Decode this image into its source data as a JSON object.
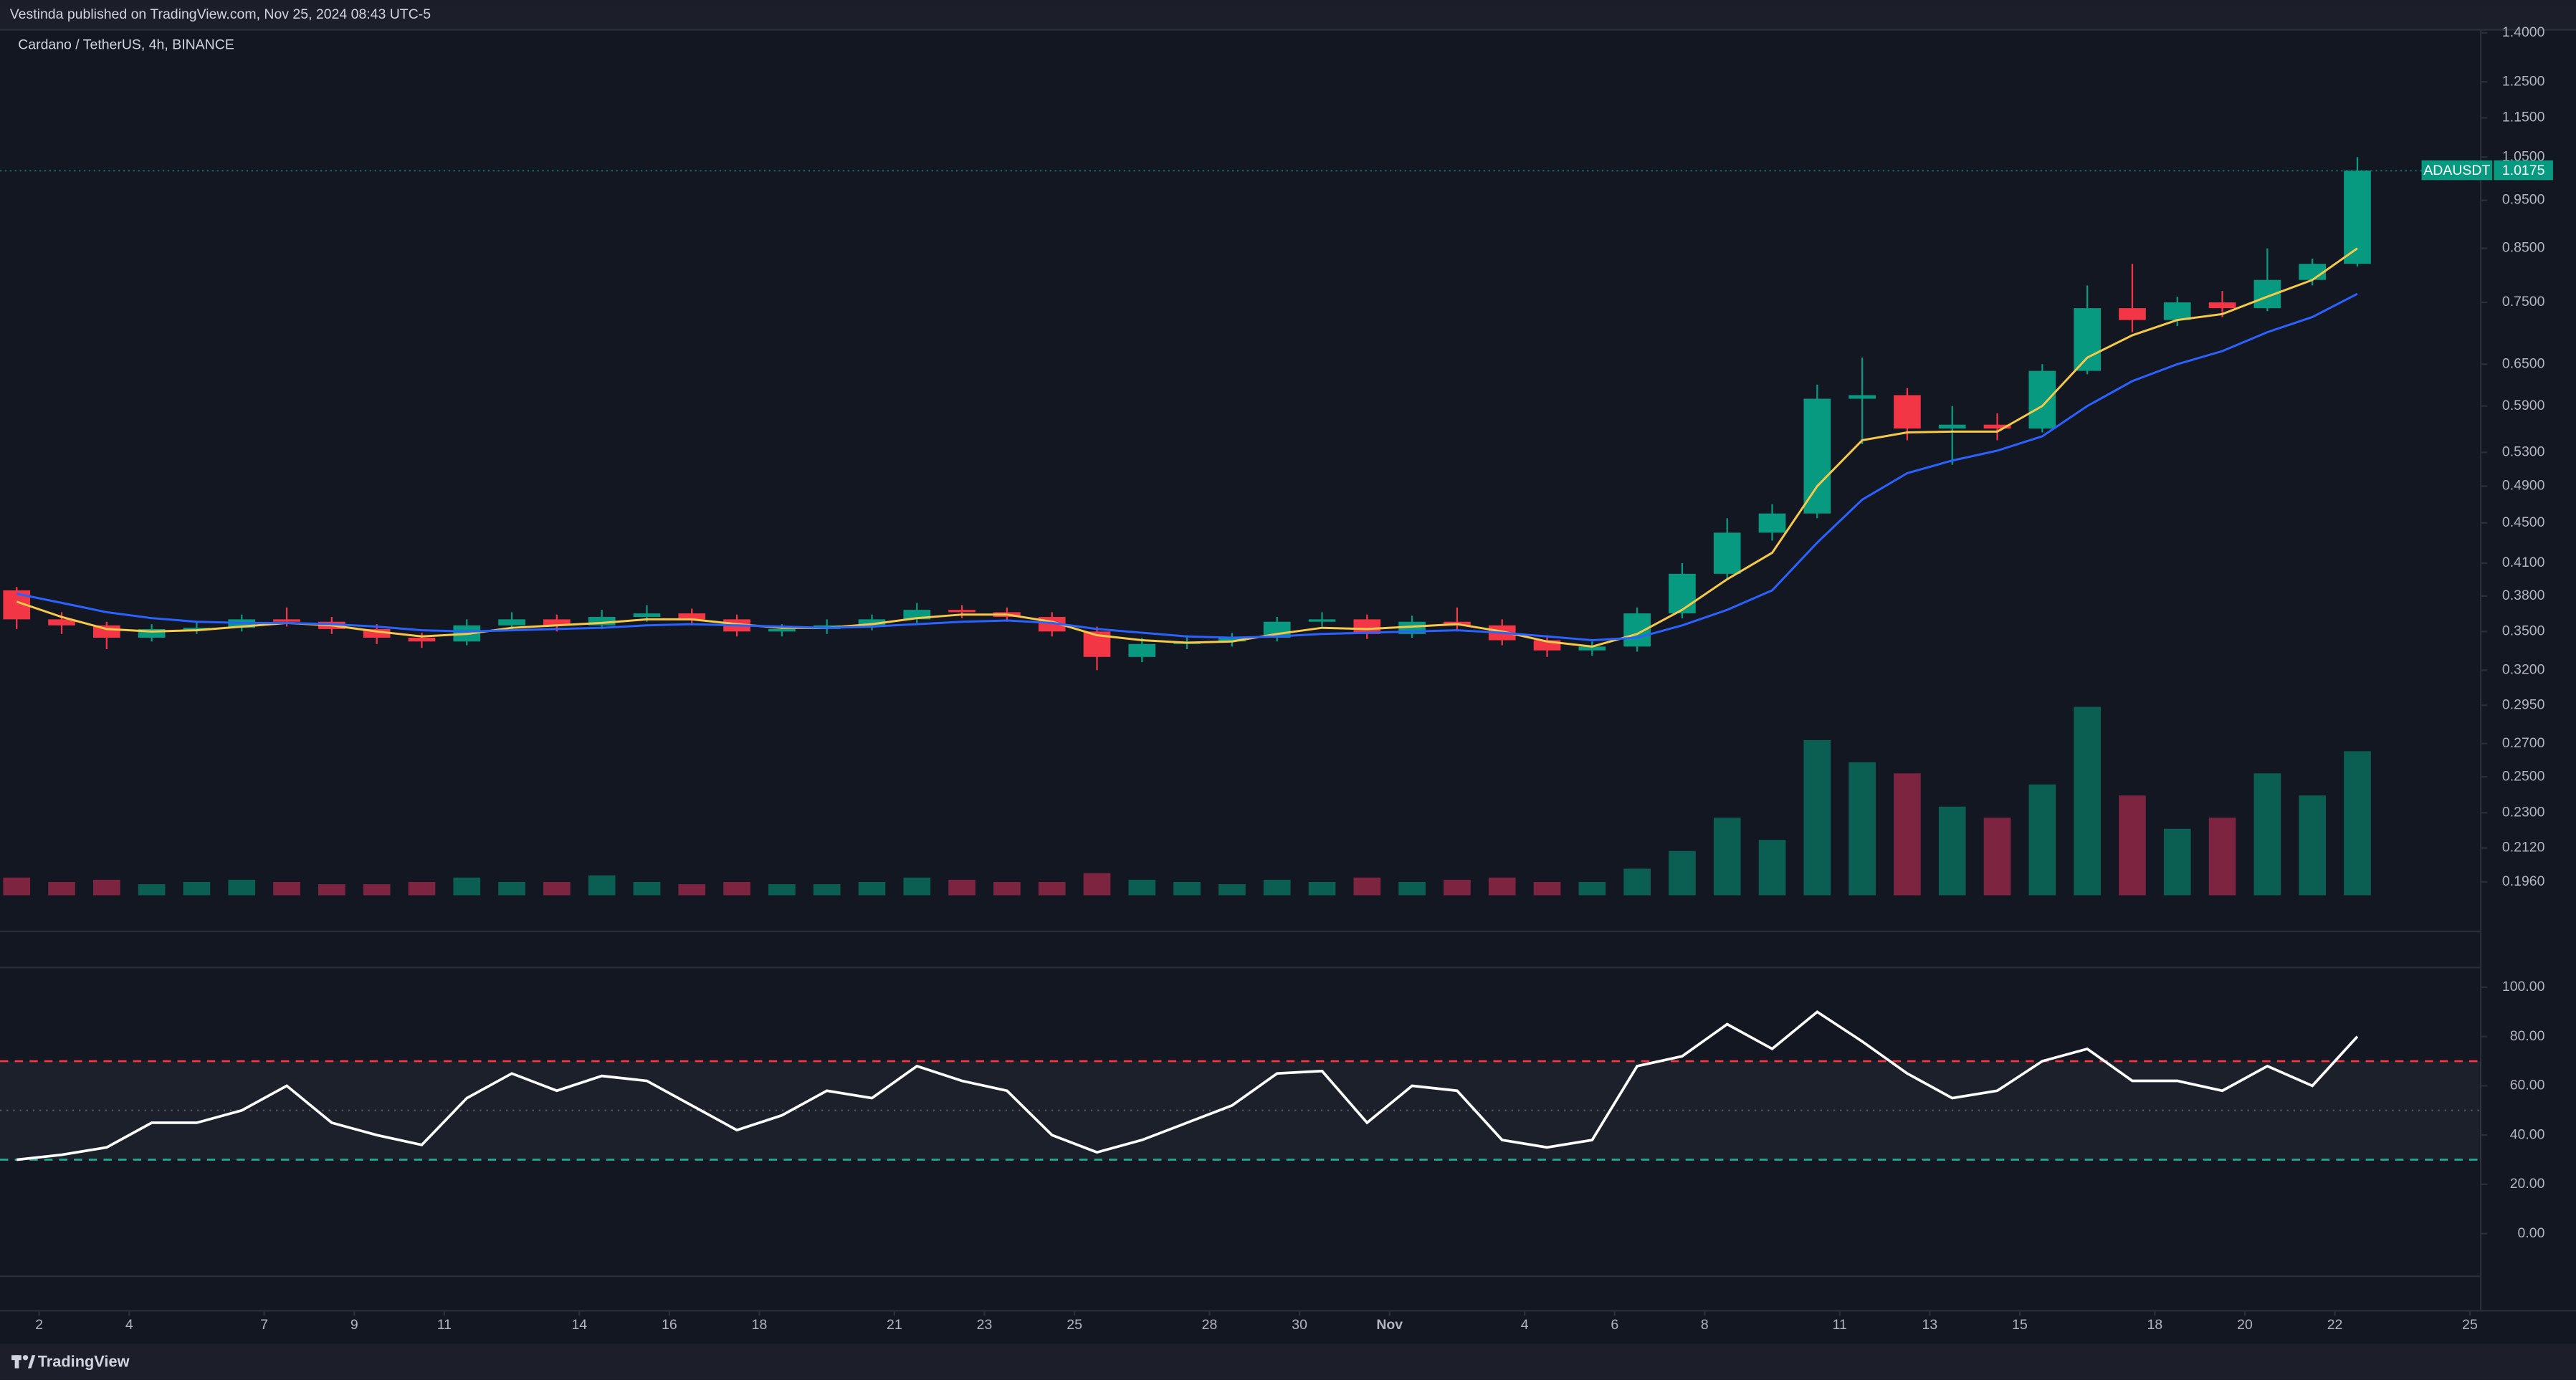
{
  "header": {
    "publisher": "Vestinda published on TradingView.com, Nov 25, 2024 08:43 UTC-5"
  },
  "footer": {
    "brand": "TradingView"
  },
  "chart_data": [
    {
      "type": "candlestick",
      "title": "Cardano / TetherUS, 4h, BINANCE",
      "log": true,
      "x": [
        0.5,
        1.5,
        2.5,
        3.5,
        4.5,
        5.5,
        6.5,
        7.5,
        8.5,
        9.5,
        10.5,
        11.5,
        12.5,
        13.5,
        14.5,
        15.5,
        16.5,
        17.5,
        18.5,
        19.5,
        20.5,
        21.5,
        22.5,
        23.5,
        24.5,
        25.5,
        26.5,
        27.5,
        28.5,
        29.5,
        30.5,
        31.5,
        32.5,
        33.5,
        34.5,
        35.5,
        36.5,
        37.5,
        38.5,
        39.5,
        40.5,
        41.5,
        42.5,
        43.5,
        44.5,
        45.5,
        46.5,
        47.5,
        48.5,
        49.5,
        50.5,
        51.5,
        52.5
      ],
      "open": [
        0.385,
        0.36,
        0.355,
        0.345,
        0.352,
        0.353,
        0.36,
        0.358,
        0.352,
        0.345,
        0.342,
        0.355,
        0.36,
        0.355,
        0.362,
        0.365,
        0.36,
        0.35,
        0.352,
        0.355,
        0.36,
        0.368,
        0.366,
        0.362,
        0.35,
        0.33,
        0.34,
        0.342,
        0.345,
        0.358,
        0.36,
        0.348,
        0.358,
        0.355,
        0.343,
        0.335,
        0.338,
        0.365,
        0.4,
        0.44,
        0.46,
        0.6,
        0.605,
        0.56,
        0.565,
        0.56,
        0.64,
        0.74,
        0.72,
        0.75,
        0.74,
        0.79,
        0.82
      ],
      "high": [
        0.388,
        0.366,
        0.358,
        0.356,
        0.358,
        0.364,
        0.37,
        0.362,
        0.356,
        0.349,
        0.36,
        0.366,
        0.364,
        0.368,
        0.372,
        0.369,
        0.364,
        0.356,
        0.36,
        0.364,
        0.374,
        0.372,
        0.37,
        0.366,
        0.354,
        0.345,
        0.347,
        0.349,
        0.362,
        0.366,
        0.364,
        0.363,
        0.37,
        0.36,
        0.347,
        0.342,
        0.37,
        0.41,
        0.455,
        0.47,
        0.62,
        0.66,
        0.615,
        0.59,
        0.58,
        0.65,
        0.78,
        0.82,
        0.76,
        0.77,
        0.85,
        0.83,
        1.05
      ],
      "low": [
        0.352,
        0.348,
        0.336,
        0.342,
        0.348,
        0.35,
        0.354,
        0.348,
        0.34,
        0.337,
        0.339,
        0.351,
        0.35,
        0.352,
        0.358,
        0.355,
        0.346,
        0.346,
        0.348,
        0.351,
        0.356,
        0.361,
        0.358,
        0.346,
        0.32,
        0.326,
        0.336,
        0.338,
        0.342,
        0.354,
        0.344,
        0.345,
        0.35,
        0.339,
        0.33,
        0.331,
        0.334,
        0.361,
        0.395,
        0.432,
        0.455,
        0.54,
        0.545,
        0.515,
        0.545,
        0.555,
        0.635,
        0.7,
        0.71,
        0.725,
        0.735,
        0.78,
        0.815
      ],
      "close": [
        0.36,
        0.355,
        0.345,
        0.352,
        0.353,
        0.36,
        0.358,
        0.352,
        0.345,
        0.342,
        0.355,
        0.36,
        0.355,
        0.362,
        0.365,
        0.36,
        0.35,
        0.352,
        0.355,
        0.36,
        0.368,
        0.366,
        0.362,
        0.35,
        0.33,
        0.34,
        0.342,
        0.345,
        0.358,
        0.36,
        0.348,
        0.358,
        0.355,
        0.343,
        0.335,
        0.338,
        0.365,
        0.4,
        0.44,
        0.46,
        0.6,
        0.605,
        0.56,
        0.565,
        0.56,
        0.64,
        0.74,
        0.72,
        0.75,
        0.74,
        0.79,
        0.82,
        1.0175
      ],
      "up_color": "#089981",
      "down_color": "#f23645",
      "series": [
        {
          "color": "#f7c948",
          "values": [
            0.375,
            0.362,
            0.352,
            0.35,
            0.351,
            0.354,
            0.357,
            0.355,
            0.35,
            0.346,
            0.348,
            0.353,
            0.355,
            0.357,
            0.36,
            0.36,
            0.356,
            0.353,
            0.353,
            0.356,
            0.361,
            0.364,
            0.364,
            0.358,
            0.347,
            0.343,
            0.341,
            0.342,
            0.348,
            0.353,
            0.352,
            0.354,
            0.356,
            0.35,
            0.342,
            0.338,
            0.348,
            0.368,
            0.395,
            0.42,
            0.49,
            0.545,
            0.555,
            0.556,
            0.556,
            0.59,
            0.66,
            0.695,
            0.72,
            0.73,
            0.76,
            0.79,
            0.85
          ]
        },
        {
          "color": "#2962ff",
          "values": [
            0.382,
            0.374,
            0.366,
            0.361,
            0.358,
            0.357,
            0.357,
            0.356,
            0.354,
            0.351,
            0.35,
            0.351,
            0.352,
            0.353,
            0.355,
            0.356,
            0.355,
            0.354,
            0.353,
            0.354,
            0.356,
            0.358,
            0.359,
            0.357,
            0.352,
            0.349,
            0.346,
            0.345,
            0.346,
            0.348,
            0.349,
            0.35,
            0.351,
            0.349,
            0.346,
            0.343,
            0.345,
            0.355,
            0.368,
            0.385,
            0.43,
            0.475,
            0.505,
            0.52,
            0.532,
            0.55,
            0.59,
            0.625,
            0.65,
            0.67,
            0.7,
            0.725,
            0.765
          ]
        }
      ],
      "volume": [
        8,
        6,
        7,
        5,
        6,
        7,
        6,
        5,
        5,
        6,
        8,
        6,
        6,
        9,
        6,
        5,
        6,
        5,
        5,
        6,
        8,
        7,
        6,
        6,
        10,
        7,
        6,
        5,
        7,
        6,
        8,
        6,
        7,
        8,
        6,
        6,
        12,
        20,
        35,
        25,
        70,
        60,
        55,
        40,
        35,
        50,
        85,
        45,
        30,
        35,
        55,
        45,
        65
      ],
      "volume_lim": [
        0,
        100
      ],
      "volume_up_color": "#0b5e52",
      "volume_down_color": "#7c2440",
      "last_price": {
        "symbol": "ADAUSDT",
        "value": 1.0175,
        "color": "#089981"
      },
      "xlim": [
        0.13,
        55.24
      ],
      "ylim": [
        0.19,
        1.41
      ],
      "yticks": [
        {
          "value": 1.4,
          "label": "1.4000"
        },
        {
          "value": 1.25,
          "label": "1.2500"
        },
        {
          "value": 1.15,
          "label": "1.1500"
        },
        {
          "value": 1.05,
          "label": "1.0500"
        },
        {
          "value": 0.95,
          "label": "0.9500"
        },
        {
          "value": 0.85,
          "label": "0.8500"
        },
        {
          "value": 0.75,
          "label": "0.7500"
        },
        {
          "value": 0.65,
          "label": "0.6500"
        },
        {
          "value": 0.59,
          "label": "0.5900"
        },
        {
          "value": 0.53,
          "label": "0.5300"
        },
        {
          "value": 0.49,
          "label": "0.4900"
        },
        {
          "value": 0.45,
          "label": "0.4500"
        },
        {
          "value": 0.41,
          "label": "0.4100"
        },
        {
          "value": 0.38,
          "label": "0.3800"
        },
        {
          "value": 0.35,
          "label": "0.3500"
        },
        {
          "value": 0.32,
          "label": "0.3200"
        },
        {
          "value": 0.295,
          "label": "0.2950"
        },
        {
          "value": 0.27,
          "label": "0.2700"
        },
        {
          "value": 0.25,
          "label": "0.2500"
        },
        {
          "value": 0.23,
          "label": "0.2300"
        },
        {
          "value": 0.212,
          "label": "0.2120"
        },
        {
          "value": 0.196,
          "label": "0.1960"
        }
      ]
    },
    {
      "type": "line",
      "color": "#ffffff",
      "x": [
        0.5,
        1.5,
        2.5,
        3.5,
        4.5,
        5.5,
        6.5,
        7.5,
        8.5,
        9.5,
        10.5,
        11.5,
        12.5,
        13.5,
        14.5,
        15.5,
        16.5,
        17.5,
        18.5,
        19.5,
        20.5,
        21.5,
        22.5,
        23.5,
        24.5,
        25.5,
        26.5,
        27.5,
        28.5,
        29.5,
        30.5,
        31.5,
        32.5,
        33.5,
        34.5,
        35.5,
        36.5,
        37.5,
        38.5,
        39.5,
        40.5,
        41.5,
        42.5,
        43.5,
        44.5,
        45.5,
        46.5,
        47.5,
        48.5,
        49.5,
        50.5,
        51.5,
        52.5
      ],
      "values": [
        30,
        32,
        35,
        45,
        45,
        50,
        60,
        45,
        40,
        36,
        55,
        65,
        58,
        64,
        62,
        52,
        42,
        48,
        58,
        55,
        68,
        62,
        58,
        40,
        33,
        38,
        45,
        52,
        65,
        66,
        45,
        60,
        58,
        38,
        35,
        38,
        68,
        72,
        85,
        75,
        90,
        78,
        65,
        55,
        58,
        70,
        75,
        62,
        62,
        58,
        68,
        60,
        80
      ],
      "overbought": 70,
      "oversold": 30,
      "middle": 50,
      "overbought_color": "#f23645",
      "oversold_color": "#22ab94",
      "xlim": [
        0.13,
        55.24
      ],
      "ylim": [
        -18,
        122
      ],
      "yticks": [
        {
          "value": 100,
          "label": "100.00"
        },
        {
          "value": 80,
          "label": "80.00"
        },
        {
          "value": 60,
          "label": "60.00"
        },
        {
          "value": 40,
          "label": "40.00"
        },
        {
          "value": 20,
          "label": "20.00"
        },
        {
          "value": 0,
          "label": "0.00"
        }
      ],
      "xticks": [
        {
          "value": 1,
          "label": "2"
        },
        {
          "value": 3,
          "label": "4"
        },
        {
          "value": 6,
          "label": "7"
        },
        {
          "value": 8,
          "label": "9"
        },
        {
          "value": 10,
          "label": "11"
        },
        {
          "value": 13,
          "label": "14"
        },
        {
          "value": 15,
          "label": "16"
        },
        {
          "value": 17,
          "label": "18"
        },
        {
          "value": 20,
          "label": "21"
        },
        {
          "value": 22,
          "label": "23"
        },
        {
          "value": 24,
          "label": "25"
        },
        {
          "value": 27,
          "label": "28"
        },
        {
          "value": 29,
          "label": "30"
        },
        {
          "value": 31,
          "label": "Nov"
        },
        {
          "value": 34,
          "label": "4"
        },
        {
          "value": 36,
          "label": "6"
        },
        {
          "value": 38,
          "label": "8"
        },
        {
          "value": 41,
          "label": "11"
        },
        {
          "value": 43,
          "label": "13"
        },
        {
          "value": 45,
          "label": "15"
        },
        {
          "value": 48,
          "label": "18"
        },
        {
          "value": 50,
          "label": "20"
        },
        {
          "value": 52,
          "label": "22"
        },
        {
          "value": 55,
          "label": "25"
        }
      ]
    }
  ]
}
